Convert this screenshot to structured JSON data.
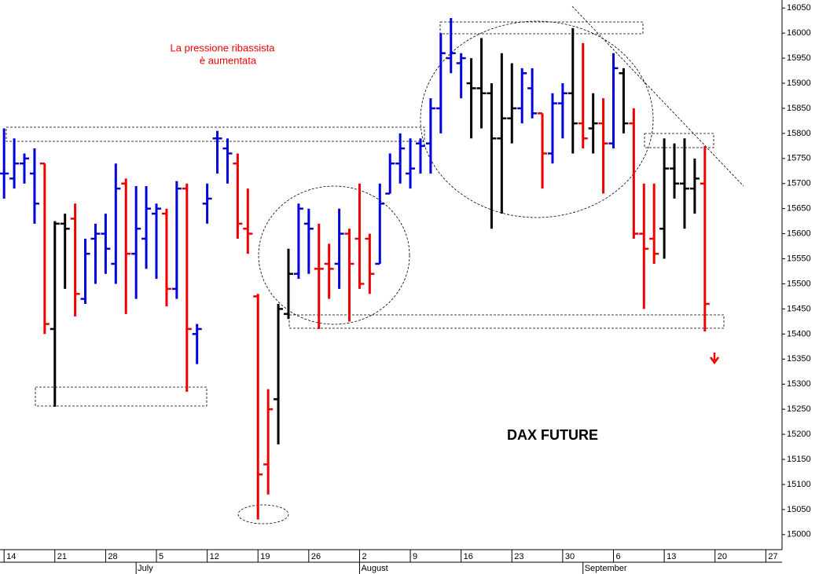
{
  "chart_data": {
    "type": "ohlc",
    "title": "DAX FUTURE",
    "annotation": [
      "La pressione ribassista",
      "è aumentata"
    ],
    "open": [
      15720,
      15710,
      15740,
      15720,
      15740,
      15410,
      15620,
      15630,
      15470,
      15590,
      15600,
      15540,
      15700,
      15560,
      15590,
      15640,
      15640,
      15490,
      15690,
      15400,
      15660,
      15790,
      15770,
      15740,
      15610,
      15475,
      15140,
      15270,
      15440,
      15520,
      15620,
      15530,
      15540,
      15540,
      15600,
      15590,
      15590,
      15540,
      15680,
      15740,
      15720,
      15780,
      15780,
      15850,
      15950,
      15940,
      15900,
      15890,
      15880,
      15790,
      15830,
      15850,
      15890,
      15840,
      15760,
      15860,
      15880,
      15820,
      15810,
      15820,
      15780,
      15920,
      15820,
      15600,
      15590,
      15610,
      15730,
      15700,
      15690,
      15700
    ],
    "high": [
      15810,
      15790,
      15760,
      15770,
      15740,
      15625,
      15640,
      15660,
      15590,
      15620,
      15640,
      15740,
      15710,
      15695,
      15695,
      15660,
      15650,
      15705,
      15700,
      15420,
      15700,
      15805,
      15790,
      15760,
      15690,
      15480,
      15290,
      15460,
      15570,
      15660,
      15650,
      15620,
      15580,
      15650,
      15610,
      15700,
      15600,
      15700,
      15760,
      15800,
      15790,
      15790,
      15870,
      16000,
      16030,
      15960,
      15950,
      15990,
      15900,
      15960,
      15940,
      15930,
      15930,
      15840,
      15880,
      15900,
      16010,
      15980,
      15880,
      15870,
      15960,
      15930,
      15850,
      15700,
      15700,
      15790,
      15780,
      15790,
      15750,
      15775
    ],
    "low": [
      15670,
      15690,
      15700,
      15620,
      15400,
      15255,
      15490,
      15435,
      15460,
      15500,
      15520,
      15500,
      15440,
      15470,
      15530,
      15510,
      15455,
      15470,
      15285,
      15340,
      15620,
      15720,
      15700,
      15590,
      15560,
      15030,
      15080,
      15180,
      15430,
      15510,
      15520,
      15410,
      15470,
      15490,
      15425,
      15490,
      15480,
      15540,
      15680,
      15700,
      15690,
      15720,
      15720,
      15800,
      15920,
      15870,
      15790,
      15810,
      15610,
      15640,
      15780,
      15820,
      15830,
      15690,
      15740,
      15790,
      15760,
      15770,
      15760,
      15680,
      15770,
      15800,
      15590,
      15450,
      15540,
      15550,
      15670,
      15610,
      15640,
      15405
    ],
    "close": [
      15720,
      15740,
      15750,
      15660,
      15420,
      15620,
      15610,
      15480,
      15560,
      15600,
      15570,
      15690,
      15560,
      15610,
      15650,
      15650,
      15490,
      15690,
      15410,
      15410,
      15670,
      15790,
      15760,
      15620,
      15600,
      15120,
      15250,
      15450,
      15520,
      15650,
      15610,
      15530,
      15530,
      15600,
      15540,
      15500,
      15520,
      15660,
      15740,
      15770,
      15730,
      15775,
      15850,
      15960,
      15960,
      15950,
      15890,
      15880,
      15790,
      15830,
      15850,
      15920,
      15840,
      15760,
      15860,
      15880,
      15820,
      15790,
      15820,
      15780,
      15930,
      15820,
      15600,
      15570,
      15560,
      15730,
      15700,
      15690,
      15710,
      15460
    ],
    "colors": [
      "#0000dd",
      "#0000dd",
      "#0000dd",
      "#0000dd",
      "#ee0000",
      "#000000",
      "#000000",
      "#ee0000",
      "#0000dd",
      "#0000dd",
      "#0000dd",
      "#0000dd",
      "#ee0000",
      "#0000dd",
      "#0000dd",
      "#0000dd",
      "#ee0000",
      "#0000dd",
      "#ee0000",
      "#0000dd",
      "#0000dd",
      "#0000dd",
      "#0000dd",
      "#ee0000",
      "#ee0000",
      "#ee0000",
      "#ee0000",
      "#000000",
      "#000000",
      "#0000dd",
      "#0000dd",
      "#ee0000",
      "#ee0000",
      "#0000dd",
      "#ee0000",
      "#ee0000",
      "#ee0000",
      "#0000dd",
      "#0000dd",
      "#0000dd",
      "#0000dd",
      "#0000dd",
      "#0000dd",
      "#0000dd",
      "#0000dd",
      "#0000dd",
      "#000000",
      "#000000",
      "#000000",
      "#000000",
      "#000000",
      "#0000dd",
      "#0000dd",
      "#ee0000",
      "#0000dd",
      "#0000dd",
      "#000000",
      "#ee0000",
      "#000000",
      "#ee0000",
      "#0000dd",
      "#000000",
      "#ee0000",
      "#ee0000",
      "#ee0000",
      "#000000",
      "#000000",
      "#000000",
      "#000000",
      "#ee0000"
    ],
    "xlim": [
      -0.4,
      76.6
    ],
    "xticks": [
      {
        "value": 0,
        "label": "14"
      },
      {
        "value": 5,
        "label": "21"
      },
      {
        "value": 10,
        "label": "28"
      },
      {
        "value": 15,
        "label": "5"
      },
      {
        "value": 20,
        "label": "12"
      },
      {
        "value": 25,
        "label": "19"
      },
      {
        "value": 30,
        "label": "26"
      },
      {
        "value": 35,
        "label": "2"
      },
      {
        "value": 40,
        "label": "9"
      },
      {
        "value": 45,
        "label": "16"
      },
      {
        "value": 50,
        "label": "23"
      },
      {
        "value": 55,
        "label": "30"
      },
      {
        "value": 60,
        "label": "6"
      },
      {
        "value": 65,
        "label": "13"
      },
      {
        "value": 70,
        "label": "20"
      },
      {
        "value": 75,
        "label": "27"
      }
    ],
    "months": [
      {
        "value": 13,
        "label": "July"
      },
      {
        "value": 35,
        "label": "August"
      },
      {
        "value": 57,
        "label": "September"
      }
    ],
    "ylim": [
      14970,
      16066
    ],
    "yticks": [
      15000,
      15050,
      15100,
      15150,
      15200,
      15250,
      15300,
      15350,
      15400,
      15450,
      15500,
      15550,
      15600,
      15650,
      15700,
      15750,
      15800,
      15850,
      15900,
      15950,
      16000,
      16050
    ]
  }
}
